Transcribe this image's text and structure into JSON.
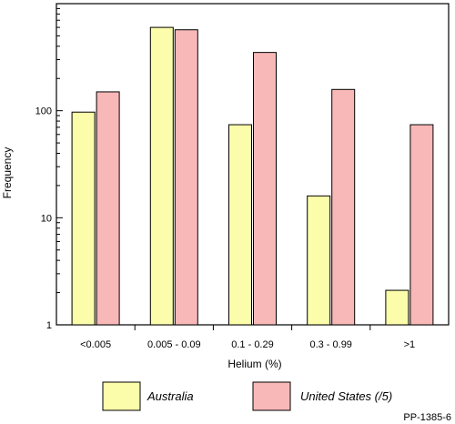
{
  "chart_data": {
    "type": "bar",
    "title": "",
    "xlabel": "Helium (%)",
    "ylabel": "Frequency",
    "yscale": "log",
    "ylim": [
      1,
      1000
    ],
    "yticks": [
      {
        "value": 1,
        "label": "1"
      },
      {
        "value": 10,
        "label": "10"
      },
      {
        "value": 100,
        "label": "100"
      }
    ],
    "grid": false,
    "legend_position": "bottom",
    "categories": [
      "<0.005",
      "0.005 - 0.09",
      "0.1 - 0.29",
      "0.3 - 0.99",
      ">1"
    ],
    "series": [
      {
        "name": "Australia",
        "color": "#fbfdab",
        "values": [
          97,
          600,
          74,
          16,
          2.1
        ]
      },
      {
        "name": "United States (/5)",
        "color": "#f8b8b8",
        "values": [
          150,
          570,
          350,
          158,
          74
        ]
      }
    ]
  },
  "figure_code": "PP-1385-6"
}
